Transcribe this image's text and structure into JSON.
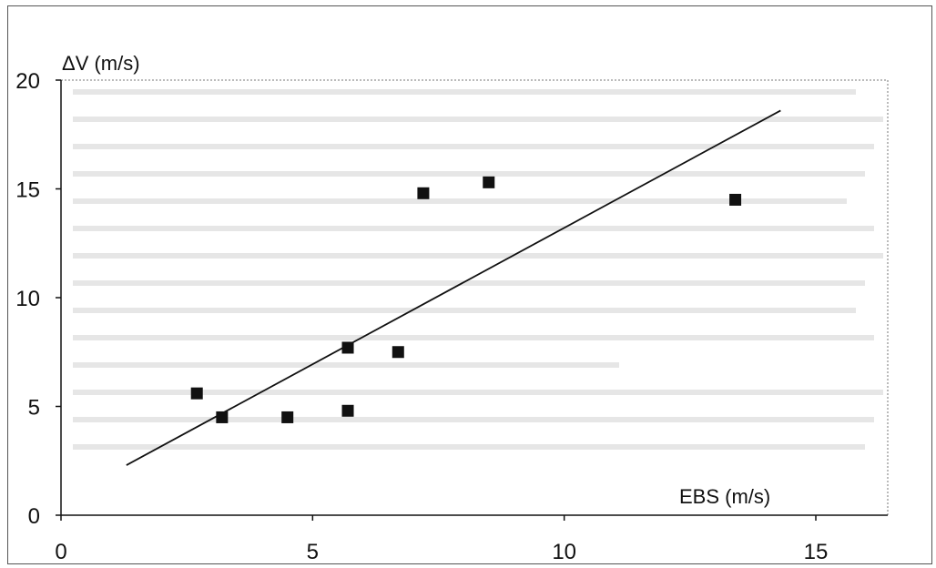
{
  "chart_data": {
    "type": "scatter",
    "title": "",
    "xlabel": "EBS (m/s)",
    "ylabel": "ΔV (m/s)",
    "xlim": [
      0,
      16
    ],
    "ylim": [
      0,
      20
    ],
    "xticks": [
      "0",
      "5",
      "10",
      "15"
    ],
    "yticks": [
      "0",
      "5",
      "10",
      "15",
      "20"
    ],
    "grid": false,
    "points": [
      {
        "x": 2.7,
        "y": 5.6
      },
      {
        "x": 3.2,
        "y": 4.5
      },
      {
        "x": 4.5,
        "y": 4.5
      },
      {
        "x": 5.7,
        "y": 4.8
      },
      {
        "x": 5.7,
        "y": 7.7
      },
      {
        "x": 6.7,
        "y": 7.5
      },
      {
        "x": 7.2,
        "y": 14.8
      },
      {
        "x": 8.5,
        "y": 15.3
      },
      {
        "x": 13.4,
        "y": 14.5
      }
    ],
    "fit_line": {
      "x": [
        1.3,
        14.3
      ],
      "y": [
        2.3,
        18.6
      ]
    },
    "marker_color": "#111111",
    "line_color": "#111111"
  }
}
